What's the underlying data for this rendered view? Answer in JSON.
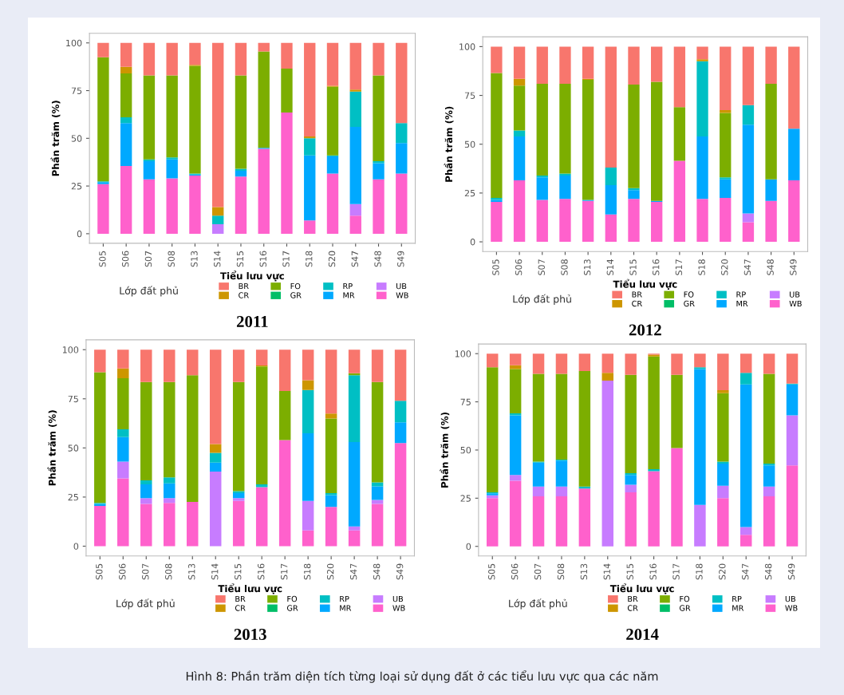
{
  "chart_data": [
    {
      "type": "bar",
      "stacked": true,
      "title": "2011",
      "xlabel": "Tiểu lưu vực",
      "ylabel": "Phần trăm (%)",
      "legend_title": "Lớp đất phủ",
      "legend": "bottom",
      "grid": false,
      "ylim": [
        -5,
        105
      ],
      "yticks": [
        0,
        25,
        50,
        75,
        100
      ],
      "categories": [
        "S05",
        "S06",
        "S07",
        "S08",
        "S13",
        "S14",
        "S15",
        "S16",
        "S17",
        "S18",
        "S20",
        "S47",
        "S48",
        "S49"
      ],
      "series": [
        {
          "name": "WB",
          "color": "#ff61cc",
          "values": [
            26,
            35.5,
            28.5,
            29,
            30.5,
            0,
            30,
            44.5,
            63.5,
            7,
            31.5,
            9.5,
            28.5,
            31.5
          ]
        },
        {
          "name": "UB",
          "color": "#c77cff",
          "values": [
            0,
            0,
            0,
            0,
            0,
            5,
            0,
            0,
            0,
            0,
            0,
            6,
            0,
            0
          ]
        },
        {
          "name": "MR",
          "color": "#00a9ff",
          "values": [
            1,
            22.5,
            9.5,
            10,
            0.5,
            0,
            3,
            0.5,
            0,
            34,
            9,
            40.5,
            8.5,
            16
          ]
        },
        {
          "name": "RP",
          "color": "#00bfc4",
          "values": [
            0.5,
            3,
            1,
            1,
            0.5,
            4.5,
            1,
            0,
            0,
            9,
            0.5,
            18.5,
            1,
            10.5
          ]
        },
        {
          "name": "GR",
          "color": "#00be67",
          "values": [
            0,
            0,
            0,
            0,
            0,
            0,
            0,
            0,
            0,
            0,
            0,
            0,
            0,
            0
          ]
        },
        {
          "name": "FO",
          "color": "#7cae00",
          "values": [
            65,
            23,
            44,
            43,
            56.5,
            0,
            49,
            50.5,
            23,
            0,
            36,
            0,
            45,
            0
          ]
        },
        {
          "name": "CR",
          "color": "#cd9600",
          "values": [
            0,
            3.5,
            0,
            0,
            0.5,
            4.5,
            0,
            0,
            0,
            1,
            0.5,
            1,
            0,
            0
          ]
        },
        {
          "name": "BR",
          "color": "#f8766d",
          "values": [
            7.5,
            12.5,
            17,
            17,
            11.5,
            86,
            17,
            4.5,
            13.5,
            49,
            22.5,
            24.5,
            17,
            42
          ]
        }
      ]
    },
    {
      "type": "bar",
      "stacked": true,
      "title": "2012",
      "xlabel": "Tiểu lưu vực",
      "ylabel": "Phần trăm (%)",
      "legend_title": "Lớp đất phủ",
      "legend": "bottom",
      "grid": false,
      "ylim": [
        -5,
        105
      ],
      "yticks": [
        0,
        25,
        50,
        75,
        100
      ],
      "categories": [
        "S05",
        "S06",
        "S07",
        "S08",
        "S13",
        "S14",
        "S15",
        "S16",
        "S17",
        "S18",
        "S20",
        "S47",
        "S48",
        "S49"
      ],
      "series": [
        {
          "name": "WB",
          "color": "#ff61cc",
          "values": [
            20.5,
            31.5,
            21.5,
            22,
            21,
            14,
            22,
            20.5,
            41.5,
            22,
            22.5,
            10,
            21,
            31.5
          ]
        },
        {
          "name": "UB",
          "color": "#c77cff",
          "values": [
            0,
            0,
            0,
            0,
            0,
            0,
            0,
            0,
            0,
            0,
            0,
            4.5,
            0,
            0
          ]
        },
        {
          "name": "MR",
          "color": "#00a9ff",
          "values": [
            1,
            22.5,
            11.5,
            12,
            0.5,
            15,
            4.5,
            0.5,
            0,
            32,
            9.5,
            45.5,
            11,
            26.5
          ]
        },
        {
          "name": "RP",
          "color": "#00bfc4",
          "values": [
            1,
            3,
            1,
            1,
            0,
            9,
            1,
            0,
            0,
            38.5,
            1,
            10,
            0,
            0
          ]
        },
        {
          "name": "GR",
          "color": "#00be67",
          "values": [
            0,
            0,
            0,
            0,
            0,
            0,
            0,
            0,
            0,
            0,
            0,
            0,
            0,
            0
          ]
        },
        {
          "name": "FO",
          "color": "#7cae00",
          "values": [
            64,
            23,
            47,
            46,
            61.5,
            0,
            53,
            61,
            27.5,
            0,
            33,
            0,
            49,
            0
          ]
        },
        {
          "name": "CR",
          "color": "#cd9600",
          "values": [
            0,
            3.5,
            0,
            0,
            0.5,
            0,
            0,
            0,
            0,
            1,
            1.5,
            0,
            0,
            0
          ]
        },
        {
          "name": "BR",
          "color": "#f8766d",
          "values": [
            13.5,
            16.5,
            19,
            19,
            16.5,
            62,
            19.5,
            18,
            31,
            6.5,
            32.5,
            30,
            19,
            42
          ]
        }
      ]
    },
    {
      "type": "bar",
      "stacked": true,
      "title": "2013",
      "xlabel": "Tiểu lưu vực",
      "ylabel": "Phần trăm (%)",
      "legend_title": "Lớp đất phủ",
      "legend": "bottom",
      "grid": false,
      "ylim": [
        -5,
        105
      ],
      "yticks": [
        0,
        25,
        50,
        75,
        100
      ],
      "categories": [
        "S05",
        "S06",
        "S07",
        "S08",
        "S13",
        "S14",
        "S15",
        "S16",
        "S17",
        "S18",
        "S20",
        "S47",
        "S48",
        "S49"
      ],
      "series": [
        {
          "name": "WB",
          "color": "#ff61cc",
          "values": [
            20.5,
            34.5,
            21.5,
            22,
            22.5,
            0,
            23,
            30,
            54,
            8,
            20,
            8,
            21.5,
            52.5
          ]
        },
        {
          "name": "UB",
          "color": "#c77cff",
          "values": [
            0,
            8.5,
            3,
            2.5,
            0,
            38,
            1.5,
            0,
            0,
            15,
            0,
            2,
            2,
            0
          ]
        },
        {
          "name": "MR",
          "color": "#00a9ff",
          "values": [
            1,
            12.5,
            7,
            7.5,
            0,
            4.5,
            2.5,
            0,
            0,
            34.5,
            6,
            43,
            7,
            10.5
          ]
        },
        {
          "name": "RP",
          "color": "#00bfc4",
          "values": [
            0.5,
            4,
            2,
            3,
            0,
            5,
            1,
            1.5,
            0,
            22,
            1,
            34,
            2,
            11
          ]
        },
        {
          "name": "GR",
          "color": "#00be67",
          "values": [
            0,
            0,
            0,
            0,
            0,
            0,
            0,
            0,
            0,
            0,
            0,
            0,
            0,
            0
          ]
        },
        {
          "name": "FO",
          "color": "#7cae00",
          "values": [
            66.5,
            26,
            50,
            48.5,
            64.5,
            0,
            55.5,
            60,
            25,
            0,
            38,
            1,
            51,
            0
          ]
        },
        {
          "name": "CR",
          "color": "#cd9600",
          "values": [
            0,
            5,
            0,
            0,
            0,
            4.5,
            0,
            0.5,
            0,
            5,
            2.5,
            0,
            0,
            0
          ]
        },
        {
          "name": "BR",
          "color": "#f8766d",
          "values": [
            11.5,
            9.5,
            16.5,
            16.5,
            13,
            48,
            16.5,
            8,
            21,
            15.5,
            32.5,
            12,
            16.5,
            26
          ]
        }
      ]
    },
    {
      "type": "bar",
      "stacked": true,
      "title": "2014",
      "xlabel": "Tiểu lưu vực",
      "ylabel": "Phần trăm (%)",
      "legend_title": "Lớp đất phủ",
      "legend": "bottom",
      "grid": false,
      "ylim": [
        -5,
        105
      ],
      "yticks": [
        0,
        25,
        50,
        75,
        100
      ],
      "categories": [
        "S05",
        "S06",
        "S07",
        "S08",
        "S13",
        "S14",
        "S15",
        "S16",
        "S17",
        "S18",
        "S20",
        "S47",
        "S48",
        "S49"
      ],
      "annotations": [
        "Hình 8: Phần trăm diện tích từng loại sử dụng đất ở các tiểu lưu vực qua các năm"
      ],
      "series": [
        {
          "name": "WB",
          "color": "#ff61cc",
          "values": [
            25,
            34,
            26,
            26,
            30,
            0,
            28,
            39,
            51,
            0,
            25,
            6,
            26,
            42
          ]
        },
        {
          "name": "UB",
          "color": "#c77cff",
          "values": [
            1.5,
            3,
            5,
            5,
            0,
            86,
            4,
            0,
            0,
            21.5,
            6.5,
            4,
            5,
            26
          ]
        },
        {
          "name": "MR",
          "color": "#00a9ff",
          "values": [
            1,
            31,
            12.5,
            13.5,
            0,
            0,
            5,
            0,
            0,
            70.5,
            11.5,
            74,
            11,
            16
          ]
        },
        {
          "name": "RP",
          "color": "#00bfc4",
          "values": [
            0.5,
            1,
            0.5,
            0.5,
            1,
            0,
            1,
            1,
            0,
            1,
            1,
            6,
            1,
            0.5
          ]
        },
        {
          "name": "GR",
          "color": "#00be67",
          "values": [
            0,
            0,
            0,
            0,
            0,
            0,
            0,
            0,
            0,
            0,
            0,
            0,
            0,
            0
          ]
        },
        {
          "name": "FO",
          "color": "#7cae00",
          "values": [
            65,
            23,
            45.5,
            44.5,
            60,
            0,
            51,
            58.5,
            38,
            0,
            35.5,
            0,
            46.5,
            0
          ]
        },
        {
          "name": "CR",
          "color": "#cd9600",
          "values": [
            0,
            2,
            0,
            0,
            0,
            4,
            0,
            1,
            0,
            0,
            1.5,
            0,
            0,
            0
          ]
        },
        {
          "name": "BR",
          "color": "#f8766d",
          "values": [
            7,
            6,
            10.5,
            10.5,
            9,
            10,
            11,
            0.5,
            11,
            7,
            19,
            10,
            10.5,
            15.5
          ]
        }
      ]
    }
  ]
}
